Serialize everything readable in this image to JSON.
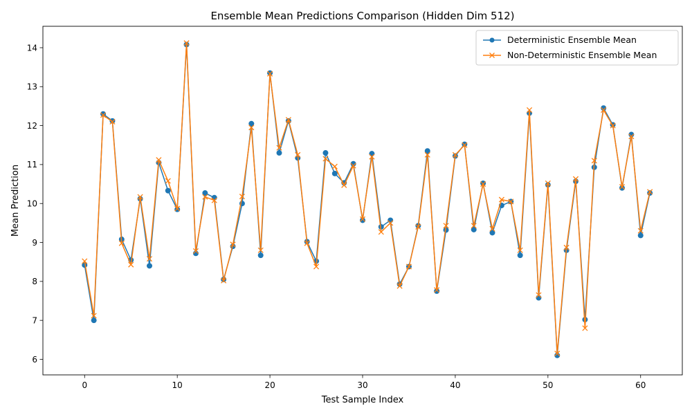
{
  "chart_data": {
    "type": "line",
    "title": "Ensemble Mean Predictions Comparison (Hidden Dim 512)",
    "xlabel": "Test Sample Index",
    "ylabel": "Mean Prediction",
    "xlim": [
      -4.5,
      64.5
    ],
    "ylim": [
      5.6,
      14.55
    ],
    "xticks": [
      0,
      10,
      20,
      30,
      40,
      50,
      60
    ],
    "yticks": [
      6,
      7,
      8,
      9,
      10,
      11,
      12,
      13,
      14
    ],
    "grid": false,
    "legend_position": "top-right",
    "x": [
      0,
      1,
      2,
      3,
      4,
      5,
      6,
      7,
      8,
      9,
      10,
      11,
      12,
      13,
      14,
      15,
      16,
      17,
      18,
      19,
      20,
      21,
      22,
      23,
      24,
      25,
      26,
      27,
      28,
      29,
      30,
      31,
      32,
      33,
      34,
      35,
      36,
      37,
      38,
      39,
      40,
      41,
      42,
      43,
      44,
      45,
      46,
      47,
      48,
      49,
      50,
      51,
      52,
      53,
      54,
      55,
      56,
      57,
      58,
      59,
      60,
      61
    ],
    "series": [
      {
        "name": "Deterministic Ensemble Mean",
        "color": "#1f77b4",
        "marker": "circle",
        "values": [
          8.42,
          7.0,
          12.3,
          12.12,
          9.08,
          8.55,
          10.12,
          8.4,
          11.05,
          10.33,
          9.85,
          14.08,
          8.72,
          10.27,
          10.15,
          8.05,
          8.9,
          10.0,
          12.05,
          8.67,
          13.35,
          11.3,
          12.12,
          11.17,
          9.02,
          8.52,
          11.3,
          10.77,
          10.53,
          11.02,
          9.57,
          11.28,
          9.4,
          9.57,
          7.93,
          8.38,
          9.43,
          11.35,
          7.75,
          9.32,
          11.22,
          11.52,
          9.33,
          10.52,
          9.25,
          9.95,
          10.05,
          8.67,
          12.32,
          7.58,
          10.48,
          6.1,
          8.8,
          10.57,
          7.02,
          10.93,
          12.45,
          12.02,
          10.4,
          11.77,
          9.18,
          10.27
        ]
      },
      {
        "name": "Non-Deterministic Ensemble Mean",
        "color": "#ff7f0e",
        "marker": "x",
        "values": [
          8.52,
          7.12,
          12.27,
          12.1,
          8.98,
          8.43,
          10.17,
          8.58,
          11.12,
          10.58,
          9.87,
          14.12,
          8.78,
          10.17,
          10.08,
          8.02,
          8.95,
          10.18,
          11.95,
          8.8,
          13.33,
          11.43,
          12.15,
          11.25,
          8.98,
          8.38,
          11.15,
          10.95,
          10.47,
          10.97,
          9.6,
          11.2,
          9.27,
          9.5,
          7.88,
          8.38,
          9.4,
          11.25,
          7.78,
          9.43,
          11.25,
          11.5,
          9.43,
          10.5,
          9.35,
          10.1,
          10.05,
          8.8,
          12.4,
          7.65,
          10.52,
          6.15,
          8.87,
          10.63,
          6.8,
          11.1,
          12.4,
          12.0,
          10.43,
          11.72,
          9.3,
          10.3
        ]
      }
    ]
  }
}
